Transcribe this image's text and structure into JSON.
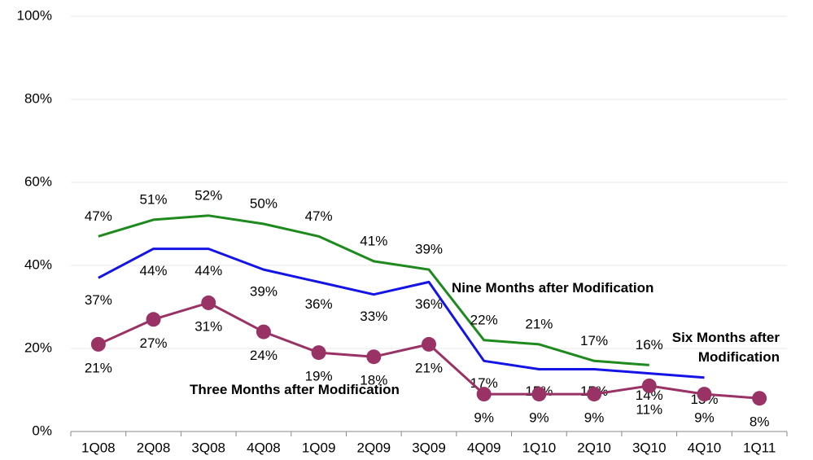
{
  "chart_data": {
    "type": "line",
    "categories": [
      "1Q08",
      "2Q08",
      "3Q08",
      "4Q08",
      "1Q09",
      "2Q09",
      "3Q09",
      "4Q09",
      "1Q10",
      "2Q10",
      "3Q10",
      "4Q10",
      "1Q11"
    ],
    "series": [
      {
        "name": "Nine Months after Modification",
        "color": "#1e8a1e",
        "values": [
          47,
          51,
          52,
          50,
          47,
          41,
          39,
          22,
          21,
          17,
          16,
          null,
          null
        ],
        "value_labels": [
          "47%",
          "51%",
          "52%",
          "50%",
          "47%",
          "41%",
          "39%",
          "22%",
          "21%",
          "17%",
          "16%",
          null,
          null
        ]
      },
      {
        "name": "Six Months after Modification",
        "color": "#1414e6",
        "values": [
          37,
          44,
          44,
          39,
          36,
          33,
          36,
          17,
          15,
          15,
          14,
          13,
          null
        ],
        "value_labels": [
          "37%",
          "44%",
          "44%",
          "39%",
          "36%",
          "33%",
          "36%",
          "17%",
          "15%",
          "15%",
          "14%",
          "13%",
          null
        ]
      },
      {
        "name": "Three Months after Modification",
        "color": "#993366",
        "markers": true,
        "values": [
          21,
          27,
          31,
          24,
          19,
          18,
          21,
          9,
          9,
          9,
          11,
          9,
          8
        ],
        "value_labels": [
          "21%",
          "27%",
          "31%",
          "24%",
          "19%",
          "18%",
          "21%",
          "9%",
          "9%",
          "9%",
          "11%",
          "9%",
          "8%"
        ]
      }
    ],
    "ylim": [
      0,
      100
    ],
    "yticks": [
      {
        "value": 0,
        "label": "0%"
      },
      {
        "value": 20,
        "label": "20%"
      },
      {
        "value": 40,
        "label": "40%"
      },
      {
        "value": 60,
        "label": "60%"
      },
      {
        "value": 80,
        "label": "80%"
      },
      {
        "value": 100,
        "label": "100%"
      }
    ],
    "grid": true
  }
}
